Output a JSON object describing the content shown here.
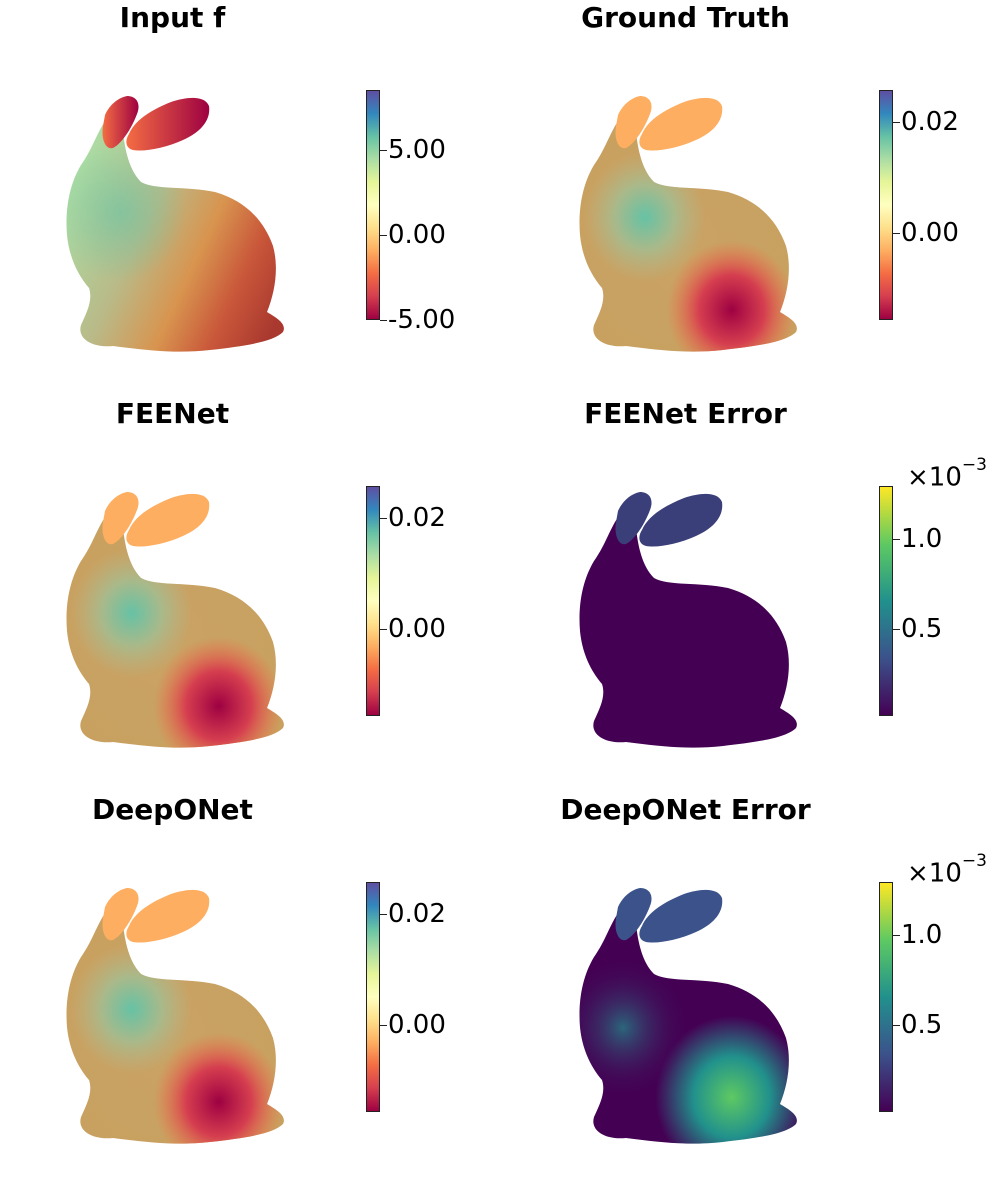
{
  "panels": [
    {
      "id": "input-f",
      "title": "Input f",
      "colormap": "spectral",
      "ticks": [
        {
          "label": "5.00",
          "frac": 0.74
        },
        {
          "label": "0.00",
          "frac": 0.37
        },
        {
          "label": "-5.00",
          "frac": 0.0
        }
      ],
      "exponent": null
    },
    {
      "id": "ground-truth",
      "title": "Ground Truth",
      "colormap": "spectral",
      "ticks": [
        {
          "label": "0.02",
          "frac": 0.86
        },
        {
          "label": "0.00",
          "frac": 0.38
        }
      ],
      "exponent": null
    },
    {
      "id": "feenet",
      "title": "FEENet",
      "colormap": "spectral",
      "ticks": [
        {
          "label": "0.02",
          "frac": 0.86
        },
        {
          "label": "0.00",
          "frac": 0.38
        }
      ],
      "exponent": null
    },
    {
      "id": "feenet-error",
      "title": "FEENet Error",
      "colormap": "viridis",
      "ticks": [
        {
          "label": "1.0",
          "frac": 0.77
        },
        {
          "label": "0.5",
          "frac": 0.38
        }
      ],
      "exponent": {
        "base": "×10",
        "power": "−3"
      }
    },
    {
      "id": "deeponet",
      "title": "DeepONet",
      "colormap": "spectral",
      "ticks": [
        {
          "label": "0.02",
          "frac": 0.86
        },
        {
          "label": "0.00",
          "frac": 0.38
        }
      ],
      "exponent": null
    },
    {
      "id": "deeponet-error",
      "title": "DeepONet Error",
      "colormap": "viridis",
      "ticks": [
        {
          "label": "1.0",
          "frac": 0.77
        },
        {
          "label": "0.5",
          "frac": 0.38
        }
      ],
      "exponent": {
        "base": "×10",
        "power": "−3"
      }
    }
  ],
  "colors": {
    "spectral": [
      "#9e0142",
      "#d53e4f",
      "#f46d43",
      "#fdae61",
      "#fee08b",
      "#ffffbf",
      "#e6f598",
      "#abdda4",
      "#66c2a5",
      "#3288bd",
      "#5e4fa2"
    ],
    "viridis": [
      "#440154",
      "#3b528b",
      "#21918c",
      "#5ec962",
      "#fde725"
    ]
  }
}
